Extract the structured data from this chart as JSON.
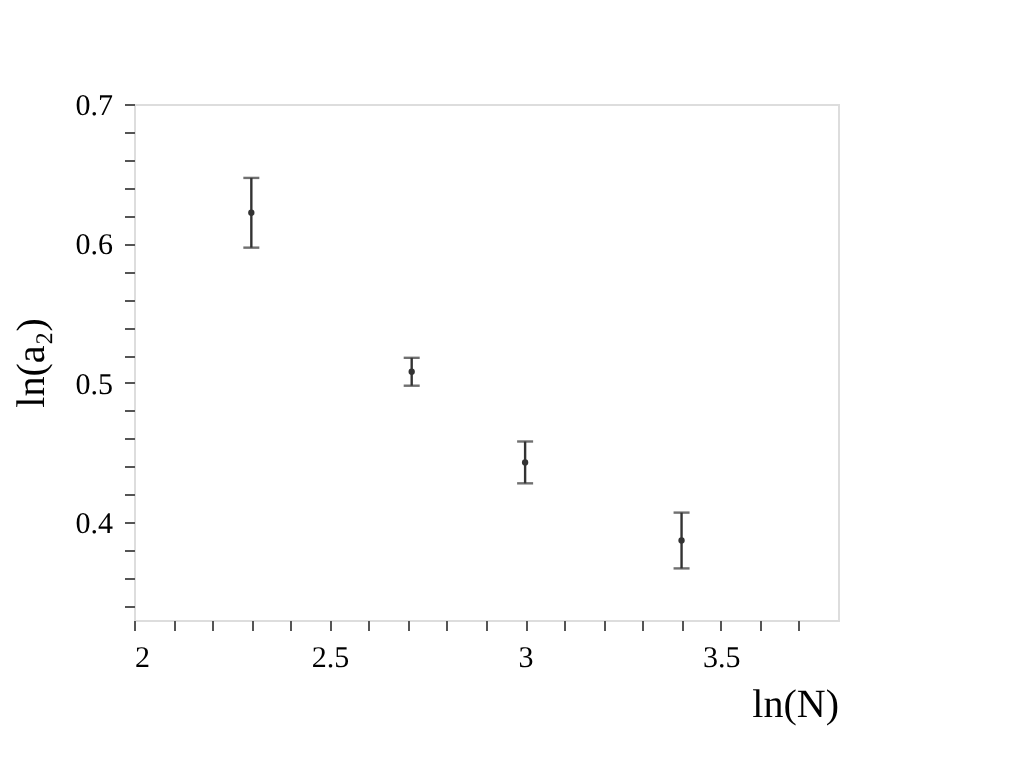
{
  "chart_data": {
    "type": "scatter",
    "xlabel": "ln(N)",
    "ylabel": "ln(a₂)",
    "x": [
      2.3,
      2.71,
      3.0,
      3.4
    ],
    "values": [
      0.622,
      0.508,
      0.443,
      0.387
    ],
    "errors": [
      0.025,
      0.01,
      0.015,
      0.02
    ],
    "marker": "none",
    "grid": false,
    "xlim": [
      2,
      3.8
    ],
    "ylim": [
      0.33,
      0.7
    ],
    "xticks": [
      2,
      {
        "value": 2.1,
        "label": null
      },
      {
        "value": 2.2,
        "label": null
      },
      {
        "value": 2.3,
        "label": null
      },
      {
        "value": 2.4,
        "label": null
      },
      2.5,
      {
        "value": 2.6,
        "label": null
      },
      {
        "value": 2.7,
        "label": null
      },
      {
        "value": 2.8,
        "label": null
      },
      {
        "value": 2.9,
        "label": null
      },
      3,
      {
        "value": 3.1,
        "label": null
      },
      {
        "value": 3.2,
        "label": null
      },
      {
        "value": 3.3,
        "label": null
      },
      {
        "value": 3.4,
        "label": null
      },
      3.5,
      {
        "value": 3.6,
        "label": null
      },
      {
        "value": 3.7,
        "label": null
      }
    ],
    "yticks": [
      {
        "value": 0.34,
        "label": null
      },
      {
        "value": 0.36,
        "label": null
      },
      {
        "value": 0.38,
        "label": null
      },
      0.4,
      {
        "value": 0.42,
        "label": null
      },
      {
        "value": 0.44,
        "label": null
      },
      {
        "value": 0.46,
        "label": null
      },
      {
        "value": 0.48,
        "label": null
      },
      0.5,
      {
        "value": 0.52,
        "label": null
      },
      {
        "value": 0.54,
        "label": null
      },
      {
        "value": 0.56,
        "label": null
      },
      {
        "value": 0.58,
        "label": null
      },
      0.6,
      {
        "value": 0.62,
        "label": null
      },
      {
        "value": 0.64,
        "label": null
      },
      {
        "value": 0.66,
        "label": null
      },
      {
        "value": 0.68,
        "label": null
      },
      0.7
    ]
  }
}
